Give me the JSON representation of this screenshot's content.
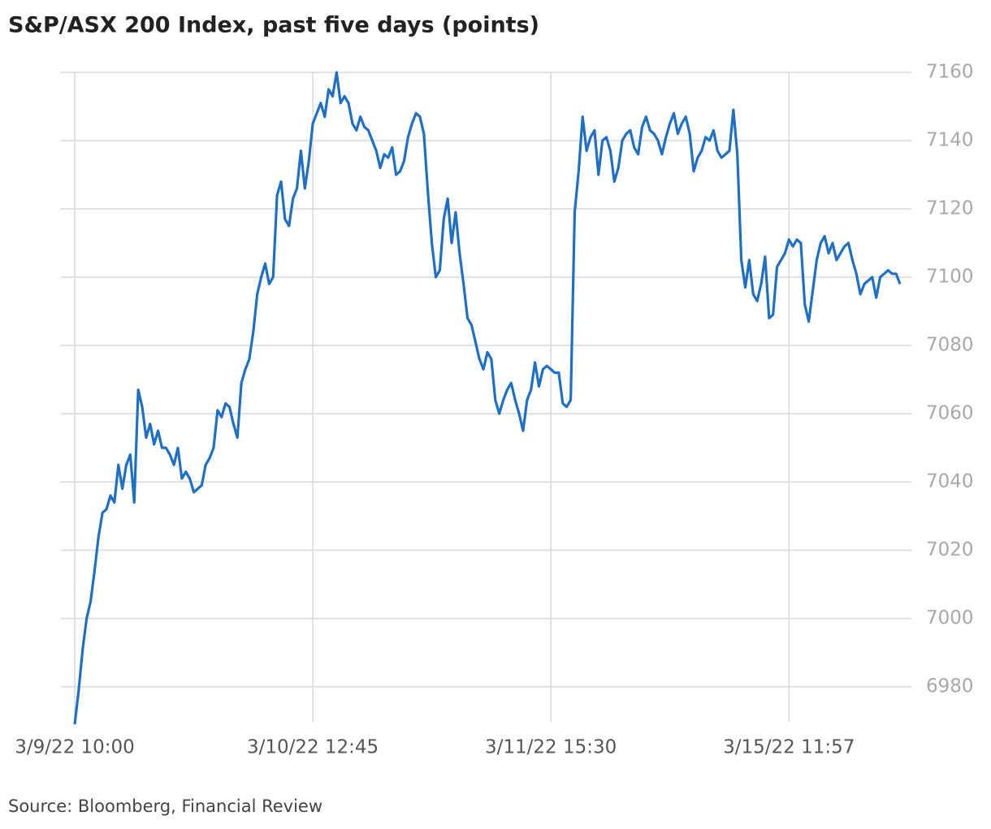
{
  "chart_data": {
    "type": "line",
    "title": "S&P/ASX 200 Index, past five days (points)",
    "source": "Source: Bloomberg, Financial Review",
    "color": "#1f6fc5",
    "grid": true,
    "xlim": [
      0,
      208
    ],
    "xticks": [
      {
        "value": 0,
        "label": "3/9/22 10:00"
      },
      {
        "value": 60,
        "label": "3/10/22 12:45"
      },
      {
        "value": 120,
        "label": "3/11/22 15:30"
      },
      {
        "value": 180,
        "label": "3/15/22 11:57"
      }
    ],
    "ylim": [
      6968,
      7164
    ],
    "yticks": [
      6980,
      7000,
      7020,
      7040,
      7060,
      7080,
      7100,
      7120,
      7140,
      7160
    ],
    "values": [
      6969,
      6979,
      6991,
      7000,
      7005,
      7014,
      7024,
      7031,
      7032,
      7036,
      7034,
      7045,
      7038,
      7045,
      7048,
      7034,
      7067,
      7062,
      7053,
      7057,
      7051,
      7055,
      7050,
      7050,
      7048,
      7045,
      7050,
      7041,
      7043,
      7041,
      7037,
      7038,
      7039,
      7045,
      7047,
      7050,
      7061,
      7059,
      7063,
      7062,
      7057,
      7053,
      7069,
      7073,
      7076,
      7084,
      7095,
      7100,
      7104,
      7098,
      7100,
      7124,
      7128,
      7117,
      7115,
      7123,
      7126,
      7137,
      7126,
      7134,
      7145,
      7148,
      7151,
      7147,
      7155,
      7153,
      7160,
      7151,
      7153,
      7151,
      7145,
      7143,
      7147,
      7144,
      7143,
      7140,
      7137,
      7132,
      7136,
      7135,
      7138,
      7130,
      7131,
      7134,
      7141,
      7145,
      7148,
      7147,
      7142,
      7125,
      7110,
      7100,
      7102,
      7117,
      7123,
      7110,
      7119,
      7107,
      7098,
      7088,
      7086,
      7081,
      7076,
      7073,
      7078,
      7076,
      7064,
      7060,
      7064,
      7067,
      7069,
      7064,
      7060,
      7055,
      7064,
      7067,
      7075,
      7068,
      7073,
      7074,
      7073,
      7072,
      7072,
      7063,
      7062,
      7064,
      7119,
      7131,
      7147,
      7137,
      7141,
      7143,
      7130,
      7140,
      7141,
      7137,
      7128,
      7132,
      7140,
      7142,
      7143,
      7138,
      7136,
      7144,
      7147,
      7143,
      7142,
      7140,
      7136,
      7141,
      7145,
      7148,
      7142,
      7145,
      7147,
      7142,
      7131,
      7135,
      7137,
      7141,
      7140,
      7143,
      7137,
      7135,
      7136,
      7137,
      7149,
      7136,
      7105,
      7097,
      7105,
      7095,
      7093,
      7098,
      7106,
      7088,
      7089,
      7103,
      7105,
      7107,
      7111,
      7109,
      7111,
      7110,
      7092,
      7087,
      7096,
      7105,
      7110,
      7112,
      7107,
      7110,
      7105,
      7107,
      7109,
      7110,
      7105,
      7101,
      7095,
      7098,
      7099,
      7100,
      7094,
      7100,
      7101,
      7102,
      7101,
      7101,
      7098
    ]
  }
}
